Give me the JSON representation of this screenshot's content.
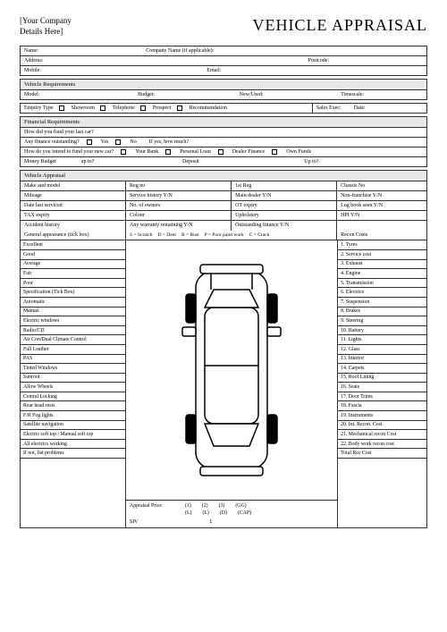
{
  "header": {
    "company_placeholder_l1": "[Your Company",
    "company_placeholder_l2": "Details Here]",
    "title": "VEHICLE APPRAISAL"
  },
  "customer": {
    "name": "Name:",
    "company": "Company Name (if applicable):",
    "address": "Address:",
    "postcode": "Postcode:",
    "mobile": "Mobile:",
    "email": "Email:"
  },
  "vehicle_req": {
    "header": "Vehicle Requirements",
    "model": "Model:",
    "budget": "Budget:",
    "newused": "New/Used:",
    "timescale": "Timescale:",
    "enquiry": "Enquiry Type",
    "showroom": "Showroom",
    "telephone": "Telephone",
    "prospect": "Prospect",
    "recommendation": "Recommendation",
    "sales_exec": "Sales Exec:",
    "date": "Date:"
  },
  "financial": {
    "header": "Financial Requirements",
    "q1": "How did you fund your last car?",
    "q2": "Any finance outstanding?",
    "yes": "Yes",
    "no": "No",
    "if_yes": "If yes, how much?",
    "q3": "How do you intend to fund your new car?",
    "your_bank": "Your Bank",
    "personal_loan": "Personal Loan",
    "dealer_finance": "Dealer Finance",
    "own_funds": "Own Funds",
    "money_budget": "Money Budget",
    "up_to": "up to?",
    "deposit": "Deposit",
    "up_to2": "Up to?"
  },
  "appraisal": {
    "header": "Vehicle Appraisal",
    "rows": [
      [
        "Make and model",
        "Reg no",
        "1st Reg",
        "Chassis No"
      ],
      [
        "Mileage",
        "Service history Y/N",
        "Main dealer Y/N",
        "Non-franchise Y/N"
      ],
      [
        "Date last serviced",
        "No. of owners",
        "OT expiry",
        "Log book seen Y/N"
      ],
      [
        "TAX expiry",
        "Colour",
        "Upholstery",
        "HPI Y/N"
      ],
      [
        "Accident history",
        "Any warranty remaining Y/N",
        "Outstanding finance Y/N",
        ""
      ]
    ],
    "legend_label": "General appearance (tick box)",
    "legend": [
      "S = Scratch",
      "D = Dent",
      "R = Rust",
      "P = Poor paint work",
      "C = Crack"
    ],
    "recon_label": "Recon Costs",
    "left_items": [
      "Excellent",
      "Good",
      "Average",
      "Fair",
      "Poor",
      "Specification (Tick Box)",
      "Automatic",
      "Manual",
      "Electric windows",
      "Radio/CD",
      "Air Con/Dual Climate Control",
      "Full Leather",
      "PAS",
      "Tinted Windows",
      "Sunroof",
      "Allow Wheels",
      "Central Locking",
      "Rear head rests",
      "F/R Fog lights",
      "Satellite navigation",
      "Electric soft top / Manual soft top",
      "All electrics working",
      "If not, list problems"
    ],
    "right_items": [
      "1. Tyres",
      "2. Service cost",
      "3. Exhaust",
      "4. Engine",
      "5. Transmission",
      "6. Electrics",
      "7. Suspension",
      "8. Brakes",
      "9. Steering",
      "10. Battery",
      "11. Lights",
      "12. Glass",
      "13. Interior",
      "14. Carpets",
      "15. Roof Lining",
      "16. Seats",
      "17. Door Trims",
      "18. Fascia",
      "19. Instruments",
      "20. Int. Recon. Cost",
      "21. Mechanical recon Cost",
      "22. Body work recon cost",
      "Total Rec Cost"
    ],
    "price_label": "Appraisal Price",
    "price_cols1": [
      "(1)",
      "(2)",
      "(3)",
      "(GG)"
    ],
    "price_cols2": [
      "(L)",
      "(L)",
      "(D)",
      "(CAP)"
    ],
    "siv": "SIV",
    "pound": "£"
  }
}
